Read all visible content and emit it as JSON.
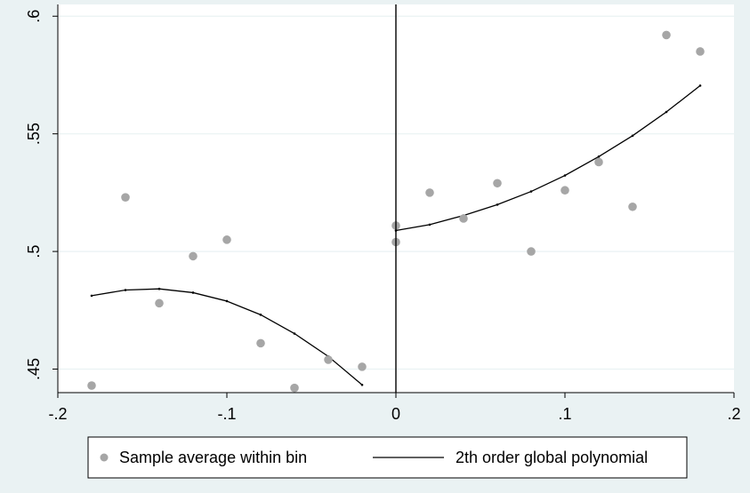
{
  "chart_data": {
    "type": "scatter",
    "title": "",
    "xlabel": "",
    "ylabel": "",
    "xlim": [
      -0.2,
      0.2
    ],
    "ylim": [
      0.44,
      0.605
    ],
    "cutoff": 0,
    "x_ticks": [
      {
        "value": -0.2,
        "label": "-.2"
      },
      {
        "value": -0.1,
        "label": "-.1"
      },
      {
        "value": 0,
        "label": "0"
      },
      {
        "value": 0.1,
        "label": ".1"
      },
      {
        "value": 0.2,
        "label": ".2"
      }
    ],
    "y_ticks": [
      {
        "value": 0.45,
        "label": ".45"
      },
      {
        "value": 0.5,
        "label": ".5"
      },
      {
        "value": 0.55,
        "label": ".55"
      },
      {
        "value": 0.6,
        "label": ".6"
      }
    ],
    "grid": true,
    "legend_position": "bottom",
    "series": [
      {
        "name": "Sample average within bin",
        "kind": "scatter",
        "color": "#a6a6a6",
        "points": [
          [
            -0.18,
            0.443
          ],
          [
            -0.16,
            0.523
          ],
          [
            -0.14,
            0.478
          ],
          [
            -0.12,
            0.498
          ],
          [
            -0.1,
            0.505
          ],
          [
            -0.08,
            0.461
          ],
          [
            -0.06,
            0.442
          ],
          [
            -0.04,
            0.454
          ],
          [
            -0.02,
            0.451
          ],
          [
            0.0,
            0.511
          ],
          [
            0.0,
            0.504
          ],
          [
            0.02,
            0.525
          ],
          [
            0.04,
            0.514
          ],
          [
            0.06,
            0.529
          ],
          [
            0.08,
            0.5
          ],
          [
            0.1,
            0.526
          ],
          [
            0.12,
            0.538
          ],
          [
            0.14,
            0.519
          ],
          [
            0.16,
            0.592
          ],
          [
            0.18,
            0.585
          ]
        ]
      },
      {
        "name": "2th order global polynomial",
        "kind": "line",
        "color": "#000000",
        "segments": [
          [
            [
              -0.18,
              0.4812
            ],
            [
              -0.16,
              0.4836
            ],
            [
              -0.14,
              0.4841
            ],
            [
              -0.12,
              0.4825
            ],
            [
              -0.1,
              0.4789
            ],
            [
              -0.08,
              0.4731
            ],
            [
              -0.06,
              0.4651
            ],
            [
              -0.04,
              0.4554
            ],
            [
              -0.02,
              0.4433
            ]
          ],
          [
            [
              0.0,
              0.5089
            ],
            [
              0.02,
              0.5114
            ],
            [
              0.04,
              0.5153
            ],
            [
              0.06,
              0.5199
            ],
            [
              0.08,
              0.5255
            ],
            [
              0.1,
              0.5323
            ],
            [
              0.12,
              0.5403
            ],
            [
              0.14,
              0.5492
            ],
            [
              0.16,
              0.5593
            ],
            [
              0.18,
              0.5705
            ]
          ]
        ]
      }
    ]
  }
}
